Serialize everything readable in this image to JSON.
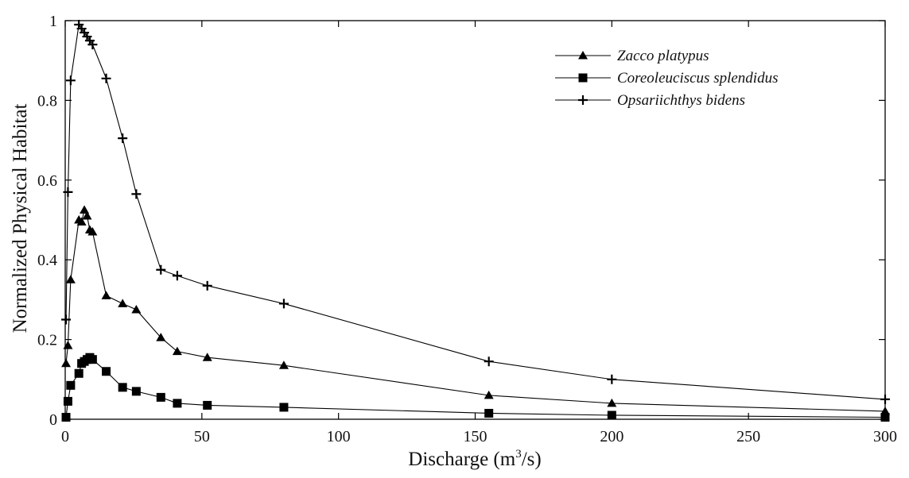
{
  "chart_data": {
    "type": "line",
    "title": "",
    "xlabel_prefix": "Discharge (m",
    "xlabel_sup": "3",
    "xlabel_suffix": "/s)",
    "ylabel": "Normalized Physical Habitat",
    "xlim": [
      0,
      300
    ],
    "ylim": [
      0,
      1
    ],
    "xticks": [
      0,
      50,
      100,
      150,
      200,
      250,
      300
    ],
    "yticks": [
      0,
      0.2,
      0.4,
      0.6,
      0.8,
      1
    ],
    "ytick_labels": [
      "0",
      "0.2",
      "0.4",
      "0.6",
      "0.8",
      "1"
    ],
    "legend_position": "top-right",
    "grid": false,
    "series": [
      {
        "name": "Zacco platypus",
        "marker": "triangle",
        "x": [
          0.3,
          1,
          2,
          5,
          6,
          7,
          8,
          9,
          10,
          15,
          21,
          26,
          35,
          41,
          52,
          80,
          155,
          200,
          300
        ],
        "y": [
          0.14,
          0.185,
          0.35,
          0.5,
          0.495,
          0.525,
          0.51,
          0.475,
          0.47,
          0.31,
          0.29,
          0.275,
          0.205,
          0.17,
          0.155,
          0.135,
          0.06,
          0.04,
          0.02
        ]
      },
      {
        "name": "Coreoleuciscus splendidus",
        "marker": "square",
        "x": [
          0.3,
          1,
          2,
          5,
          6,
          7,
          8,
          9,
          10,
          15,
          21,
          26,
          35,
          41,
          52,
          80,
          155,
          200,
          300
        ],
        "y": [
          0.005,
          0.045,
          0.085,
          0.115,
          0.14,
          0.145,
          0.15,
          0.155,
          0.15,
          0.12,
          0.08,
          0.07,
          0.055,
          0.04,
          0.035,
          0.03,
          0.015,
          0.01,
          0.005
        ]
      },
      {
        "name": "Opsariichthys bidens",
        "marker": "plus",
        "x": [
          0.3,
          1,
          2,
          5,
          6,
          7,
          8,
          9,
          10,
          15,
          21,
          26,
          35,
          41,
          52,
          80,
          155,
          200,
          300
        ],
        "y": [
          0.25,
          0.57,
          0.85,
          0.99,
          0.98,
          0.97,
          0.96,
          0.95,
          0.94,
          0.855,
          0.705,
          0.565,
          0.375,
          0.36,
          0.335,
          0.29,
          0.145,
          0.1,
          0.05
        ]
      }
    ]
  }
}
